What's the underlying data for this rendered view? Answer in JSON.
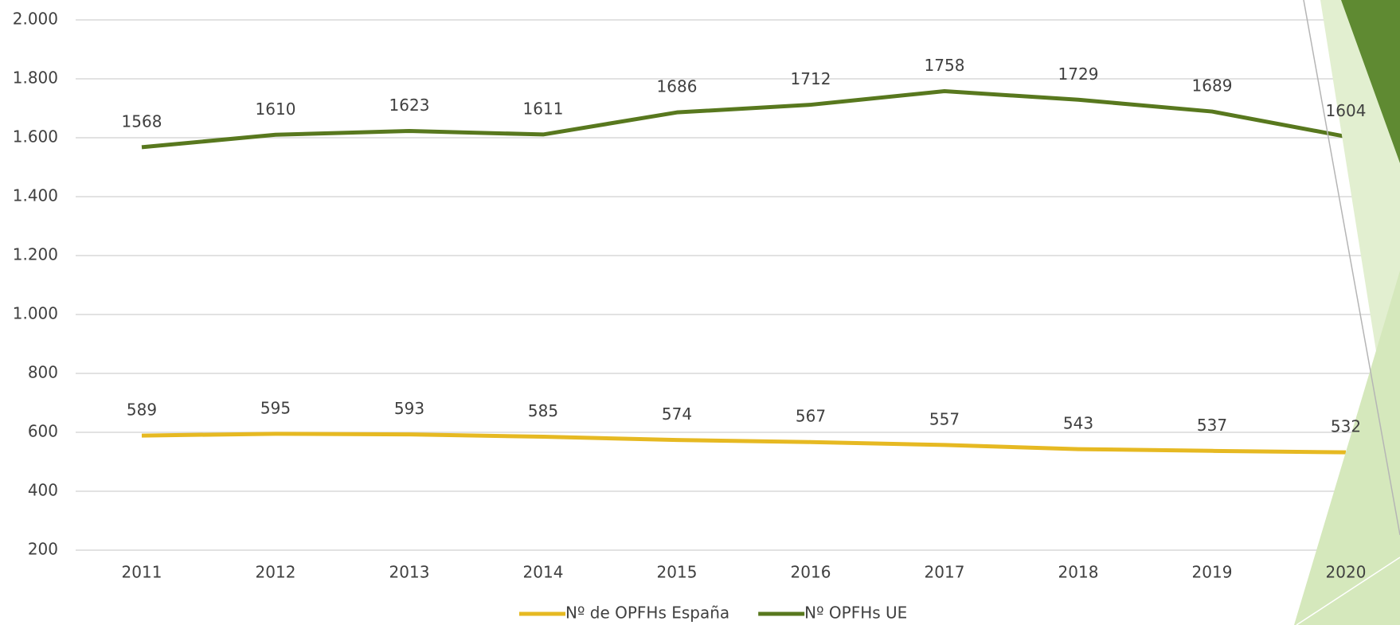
{
  "chart_data": {
    "type": "line",
    "categories": [
      "2011",
      "2012",
      "2013",
      "2014",
      "2015",
      "2016",
      "2017",
      "2018",
      "2019",
      "2020"
    ],
    "series": [
      {
        "name": "Nº de OPFHs España",
        "color": "#e6b922",
        "values": [
          589,
          595,
          593,
          585,
          574,
          567,
          557,
          543,
          537,
          532
        ]
      },
      {
        "name": "Nº OPFHs UE",
        "color": "#58781e",
        "values": [
          1568,
          1610,
          1623,
          1611,
          1686,
          1712,
          1758,
          1729,
          1689,
          1604
        ]
      }
    ],
    "ylim": [
      200,
      2000
    ],
    "yticks": [
      {
        "value": 2000,
        "label": "2.000"
      },
      {
        "value": 1800,
        "label": "1.800"
      },
      {
        "value": 1600,
        "label": "1.600"
      },
      {
        "value": 1400,
        "label": "1.400"
      },
      {
        "value": 1200,
        "label": "1.200"
      },
      {
        "value": 1000,
        "label": "1.000"
      },
      800,
      600,
      400,
      200
    ],
    "grid": true,
    "legend": "bottom"
  }
}
